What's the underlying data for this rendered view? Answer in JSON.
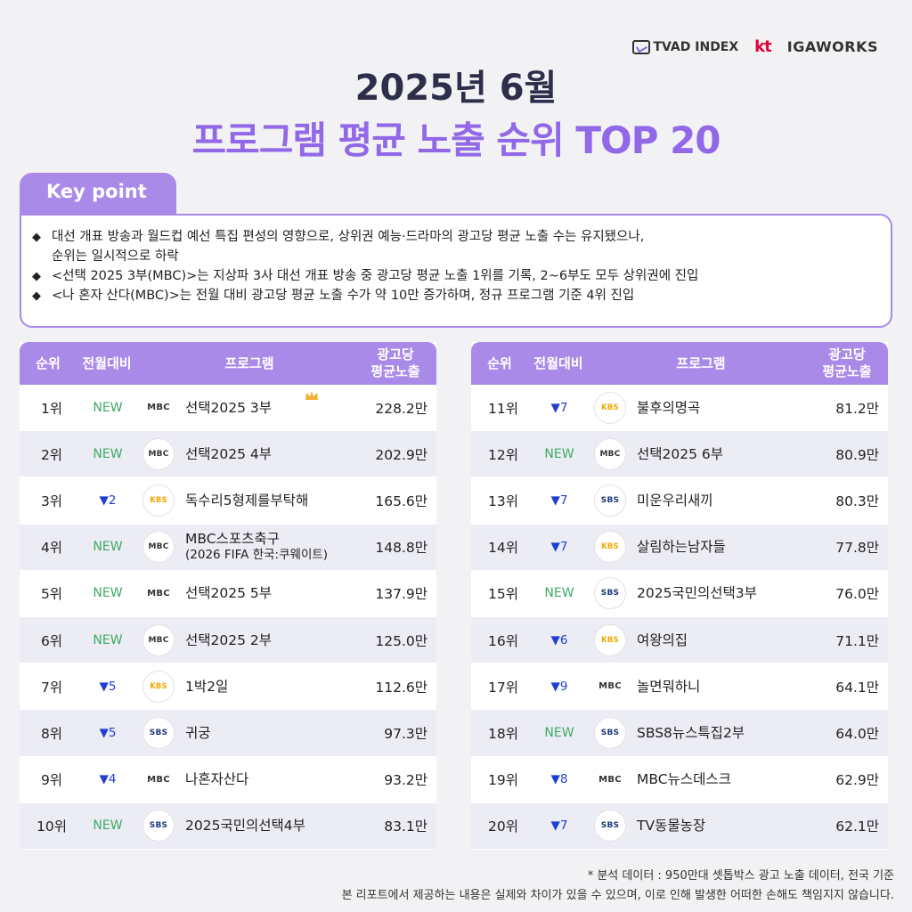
{
  "logos": {
    "tvad": "TVAD INDEX",
    "kt": "kt",
    "igaworks": "IGAWORKS"
  },
  "title": {
    "line1": "2025년 6월",
    "line2": "프로그램 평균 노출 순위 TOP 20"
  },
  "keypoint": {
    "label": "Key point",
    "bullet": "◆",
    "lines": [
      "대선 개표 방송과 월드컵 예선 특집 편성의 영향으로, 상위권 예능·드라마의 광고당 평균 노출 수는 유지됐으나,",
      "순위는 일시적으로 하락",
      "<선택 2025 3부(MBC)>는 지상파 3사 대선 개표 방송 중 광고당 평균 노출 1위를 기록, 2~6부도 모두 상위권에 진입",
      "<나 혼자 산다(MBC)>는 전월 대비 광고당 평균 노출 수가 약 10만 증가하며, 정규 프로그램 기준 4위 진입"
    ]
  },
  "table_headers": {
    "rank": "순위",
    "change": "전월대비",
    "program": "프로그램",
    "value_line1": "광고당",
    "value_line2": "평균노출"
  },
  "colors": {
    "accent": "#a98ae8",
    "title_purple": "#9168e8",
    "new": "#3daa64",
    "down": "#1f3fd0"
  },
  "chart_data": {
    "type": "table",
    "title": "프로그램 평균 노출 순위 TOP 20",
    "columns": [
      "순위",
      "전월대비",
      "프로그램",
      "광고당 평균노출"
    ],
    "rows": [
      {
        "rank": "1위",
        "change": "NEW",
        "channel": "MBC",
        "program": "선택2025 3부",
        "value": "228.2만",
        "numeric_value": 228.2
      },
      {
        "rank": "2위",
        "change": "NEW",
        "channel": "MBC",
        "program": "선택2025 4부",
        "value": "202.9만",
        "numeric_value": 202.9
      },
      {
        "rank": "3위",
        "change": "▼2",
        "channel": "KBS",
        "program": "독수리5형제를부탁해",
        "value": "165.6만",
        "numeric_value": 165.6
      },
      {
        "rank": "4위",
        "change": "NEW",
        "channel": "MBC",
        "program": "MBC스포츠축구",
        "program_sub": "(2026 FIFA 한국:쿠웨이트)",
        "value": "148.8만",
        "numeric_value": 148.8
      },
      {
        "rank": "5위",
        "change": "NEW",
        "channel": "MBC",
        "program": "선택2025 5부",
        "value": "137.9만",
        "numeric_value": 137.9
      },
      {
        "rank": "6위",
        "change": "NEW",
        "channel": "MBC",
        "program": "선택2025 2부",
        "value": "125.0만",
        "numeric_value": 125.0
      },
      {
        "rank": "7위",
        "change": "▼5",
        "channel": "KBS",
        "program": "1박2일",
        "value": "112.6만",
        "numeric_value": 112.6
      },
      {
        "rank": "8위",
        "change": "▼5",
        "channel": "SBS",
        "program": "귀궁",
        "value": "97.3만",
        "numeric_value": 97.3
      },
      {
        "rank": "9위",
        "change": "▼4",
        "channel": "MBC",
        "program": "나혼자산다",
        "value": "93.2만",
        "numeric_value": 93.2
      },
      {
        "rank": "10위",
        "change": "NEW",
        "channel": "SBS",
        "program": "2025국민의선택4부",
        "value": "83.1만",
        "numeric_value": 83.1
      },
      {
        "rank": "11위",
        "change": "▼7",
        "channel": "KBS",
        "program": "불후의명곡",
        "value": "81.2만",
        "numeric_value": 81.2
      },
      {
        "rank": "12위",
        "change": "NEW",
        "channel": "MBC",
        "program": "선택2025 6부",
        "value": "80.9만",
        "numeric_value": 80.9
      },
      {
        "rank": "13위",
        "change": "▼7",
        "channel": "SBS",
        "program": "미운우리새끼",
        "value": "80.3만",
        "numeric_value": 80.3
      },
      {
        "rank": "14위",
        "change": "▼7",
        "channel": "KBS",
        "program": "살림하는남자들",
        "value": "77.8만",
        "numeric_value": 77.8
      },
      {
        "rank": "15위",
        "change": "NEW",
        "channel": "SBS",
        "program": "2025국민의선택3부",
        "value": "76.0만",
        "numeric_value": 76.0
      },
      {
        "rank": "16위",
        "change": "▼6",
        "channel": "KBS",
        "program": "여왕의집",
        "value": "71.1만",
        "numeric_value": 71.1
      },
      {
        "rank": "17위",
        "change": "▼9",
        "channel": "MBC",
        "program": "놀면뭐하니",
        "value": "64.1만",
        "numeric_value": 64.1
      },
      {
        "rank": "18위",
        "change": "NEW",
        "channel": "SBS",
        "program": "SBS8뉴스특집2부",
        "value": "64.0만",
        "numeric_value": 64.0
      },
      {
        "rank": "19위",
        "change": "▼8",
        "channel": "MBC",
        "program": "MBC뉴스데스크",
        "value": "62.9만",
        "numeric_value": 62.9
      },
      {
        "rank": "20위",
        "change": "▼7",
        "channel": "SBS",
        "program": "TV동물농장",
        "value": "62.1만",
        "numeric_value": 62.1
      }
    ]
  },
  "footnotes": [
    "* 분석 데이터 : 950만대 셋톱박스 광고 노출 데이터, 전국 기준",
    "본 리포트에서 제공하는 내용은 실제와 차이가 있을 수 있으며, 이로 인해 발생한 어떠한 손해도 책임지지 않습니다."
  ]
}
